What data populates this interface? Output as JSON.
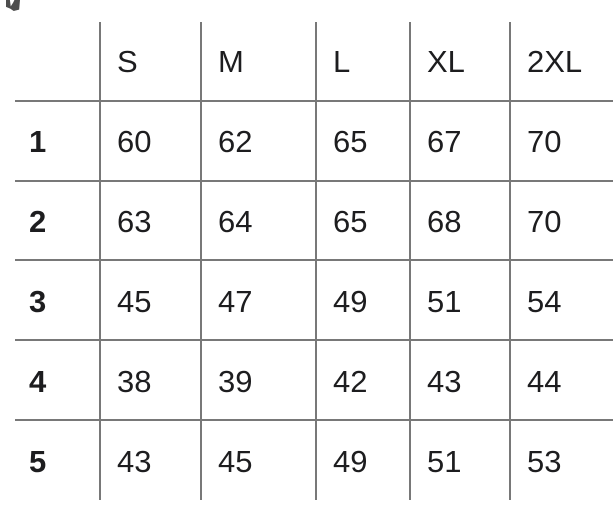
{
  "chart_data": {
    "type": "table",
    "title": "",
    "columns": [
      "S",
      "M",
      "L",
      "XL",
      "2XL"
    ],
    "row_labels": [
      "1",
      "2",
      "3",
      "4",
      "5"
    ],
    "rows": [
      [
        60,
        62,
        65,
        67,
        70
      ],
      [
        63,
        64,
        65,
        68,
        70
      ],
      [
        45,
        47,
        49,
        51,
        54
      ],
      [
        38,
        39,
        42,
        43,
        44
      ],
      [
        43,
        45,
        49,
        51,
        53
      ]
    ],
    "layout": {
      "grid": "on",
      "header_row": true,
      "bold_row_labels": true
    }
  },
  "colors": {
    "background": "#ffffff",
    "text": "#1d1d1f",
    "grid_line": "#787878"
  }
}
